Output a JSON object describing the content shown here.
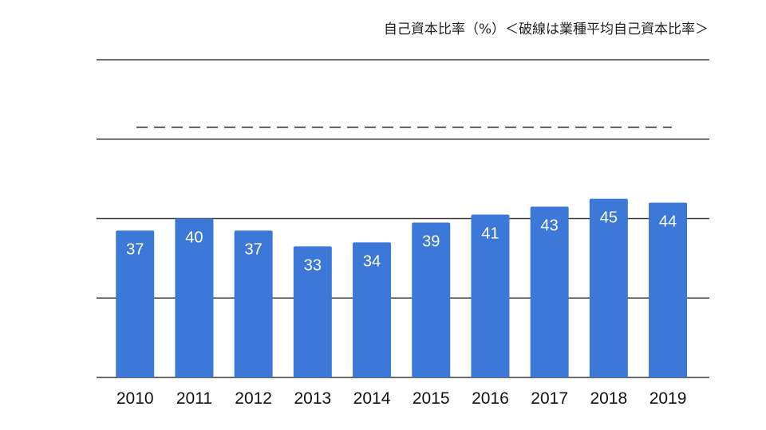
{
  "chart_data": {
    "type": "bar",
    "title": "自己資本比率（%）＜破線は業種平均自己資本比率＞",
    "categories": [
      "2010",
      "2011",
      "2012",
      "2013",
      "2014",
      "2015",
      "2016",
      "2017",
      "2018",
      "2019"
    ],
    "values": [
      37,
      40,
      37,
      33,
      34,
      39,
      41,
      43,
      45,
      44
    ],
    "ylim": [
      0,
      80
    ],
    "y_gridlines": [
      0,
      20,
      40,
      60,
      80
    ],
    "y_tick_labels_visible": false,
    "reference_line": {
      "style": "dashed",
      "value": 63
    },
    "bar_color": "#3c78d8",
    "grid": true,
    "legend": "none"
  }
}
